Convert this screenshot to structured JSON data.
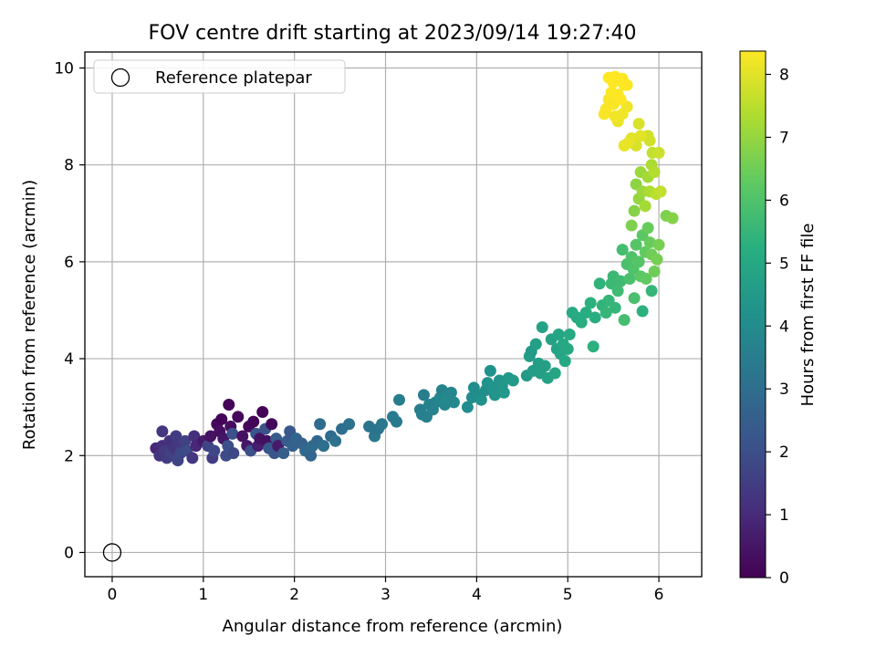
{
  "chart_data": {
    "type": "scatter",
    "title": "FOV centre drift starting at 2023/09/14 19:27:40",
    "xlabel": "Angular distance from reference (arcmin)",
    "ylabel": "Rotation from reference (arcmin)",
    "xlim": [
      -0.3,
      6.47
    ],
    "ylim": [
      -0.5,
      10.33
    ],
    "xticks": [
      0,
      1,
      2,
      3,
      4,
      5,
      6
    ],
    "yticks": [
      0,
      2,
      4,
      6,
      8,
      10
    ],
    "grid": true,
    "legend": {
      "position": "top-left",
      "entries": [
        "Reference platepar"
      ]
    },
    "reference_point": {
      "x": 0,
      "y": 0,
      "label": "Reference platepar",
      "marker": "open-circle"
    },
    "colorbar": {
      "label": "Hours from first FF file",
      "range": [
        0,
        8.37
      ],
      "ticks": [
        0,
        1,
        2,
        3,
        4,
        5,
        6,
        7,
        8
      ],
      "colormap": "viridis"
    },
    "series": [
      {
        "columns": [
          "x",
          "y",
          "hours"
        ],
        "points": [
          [
            0.48,
            2.15,
            0.9
          ],
          [
            0.52,
            2.0,
            1.2
          ],
          [
            0.55,
            2.2,
            1.1
          ],
          [
            0.55,
            2.5,
            1.3
          ],
          [
            0.58,
            2.1,
            1.4
          ],
          [
            0.6,
            1.95,
            1.5
          ],
          [
            0.63,
            2.3,
            1.2
          ],
          [
            0.65,
            2.05,
            1.6
          ],
          [
            0.68,
            2.15,
            1.3
          ],
          [
            0.7,
            2.4,
            1.5
          ],
          [
            0.72,
            1.9,
            1.7
          ],
          [
            0.75,
            2.25,
            1.4
          ],
          [
            0.75,
            2.05,
            1.8
          ],
          [
            0.8,
            2.3,
            1.6
          ],
          [
            0.82,
            2.1,
            1.9
          ],
          [
            0.88,
            1.95,
            1.3
          ],
          [
            0.9,
            2.4,
            1.1
          ],
          [
            0.92,
            2.2,
            0.9
          ],
          [
            1.0,
            2.3,
            0.6
          ],
          [
            1.05,
            2.2,
            1.7
          ],
          [
            1.08,
            2.4,
            0.4
          ],
          [
            1.1,
            1.95,
            1.5
          ],
          [
            1.12,
            2.1,
            1.8
          ],
          [
            1.15,
            2.65,
            0.2
          ],
          [
            1.18,
            2.5,
            0.3
          ],
          [
            1.2,
            2.75,
            0.1
          ],
          [
            1.22,
            2.35,
            0.5
          ],
          [
            1.25,
            2.0,
            1.9
          ],
          [
            1.27,
            2.2,
            2.0
          ],
          [
            1.28,
            3.05,
            0.05
          ],
          [
            1.3,
            2.6,
            0.3
          ],
          [
            1.32,
            2.45,
            2.1
          ],
          [
            1.33,
            2.05,
            1.8
          ],
          [
            1.38,
            2.8,
            0.2
          ],
          [
            1.43,
            2.4,
            0.4
          ],
          [
            1.48,
            2.2,
            0.5
          ],
          [
            1.5,
            2.6,
            0.2
          ],
          [
            1.52,
            2.1,
            2.0
          ],
          [
            1.55,
            2.7,
            0.1
          ],
          [
            1.58,
            2.45,
            2.2
          ],
          [
            1.6,
            2.2,
            0.7
          ],
          [
            1.62,
            2.35,
            0.4
          ],
          [
            1.65,
            2.9,
            0.05
          ],
          [
            1.68,
            2.55,
            2.1
          ],
          [
            1.7,
            2.3,
            0.3
          ],
          [
            1.72,
            2.15,
            2.3
          ],
          [
            1.75,
            2.65,
            0.15
          ],
          [
            1.78,
            2.05,
            2.2
          ],
          [
            1.8,
            2.35,
            2.4
          ],
          [
            1.82,
            2.2,
            0.6
          ],
          [
            1.88,
            2.05,
            2.5
          ],
          [
            1.92,
            2.3,
            2.4
          ],
          [
            1.95,
            2.5,
            2.3
          ],
          [
            1.98,
            2.2,
            2.6
          ],
          [
            2.02,
            2.35,
            2.7
          ],
          [
            2.08,
            2.25,
            2.6
          ],
          [
            2.12,
            2.1,
            2.8
          ],
          [
            2.18,
            2.0,
            2.7
          ],
          [
            2.2,
            2.2,
            2.9
          ],
          [
            2.25,
            2.3,
            2.8
          ],
          [
            2.28,
            2.65,
            2.9
          ],
          [
            2.32,
            2.2,
            3.0
          ],
          [
            2.4,
            2.4,
            2.9
          ],
          [
            2.45,
            2.3,
            3.1
          ],
          [
            2.52,
            2.55,
            3.0
          ],
          [
            2.6,
            2.65,
            3.1
          ],
          [
            2.82,
            2.6,
            3.2
          ],
          [
            2.88,
            2.4,
            3.3
          ],
          [
            2.92,
            2.55,
            3.2
          ],
          [
            2.96,
            2.65,
            3.3
          ],
          [
            3.08,
            2.8,
            3.4
          ],
          [
            3.12,
            2.7,
            3.4
          ],
          [
            3.15,
            3.15,
            3.5
          ],
          [
            3.38,
            2.95,
            3.5
          ],
          [
            3.4,
            2.85,
            3.6
          ],
          [
            3.42,
            3.25,
            3.5
          ],
          [
            3.45,
            2.8,
            3.6
          ],
          [
            3.48,
            3.05,
            3.7
          ],
          [
            3.52,
            2.95,
            3.6
          ],
          [
            3.55,
            3.1,
            3.7
          ],
          [
            3.6,
            3.2,
            3.8
          ],
          [
            3.62,
            3.35,
            3.7
          ],
          [
            3.65,
            3.05,
            3.8
          ],
          [
            3.68,
            3.2,
            3.9
          ],
          [
            3.72,
            3.3,
            3.8
          ],
          [
            3.75,
            3.1,
            3.9
          ],
          [
            3.9,
            3.0,
            4.0
          ],
          [
            3.95,
            3.2,
            4.0
          ],
          [
            3.97,
            3.4,
            4.1
          ],
          [
            4.02,
            3.25,
            4.1
          ],
          [
            4.05,
            3.15,
            4.2
          ],
          [
            4.1,
            3.35,
            4.1
          ],
          [
            4.12,
            3.5,
            4.2
          ],
          [
            4.15,
            3.75,
            4.2
          ],
          [
            4.18,
            3.4,
            4.3
          ],
          [
            4.2,
            3.25,
            4.3
          ],
          [
            4.25,
            3.55,
            4.3
          ],
          [
            4.28,
            3.45,
            4.4
          ],
          [
            4.3,
            3.3,
            4.4
          ],
          [
            4.35,
            3.6,
            4.4
          ],
          [
            4.4,
            3.55,
            4.5
          ],
          [
            4.55,
            3.65,
            4.5
          ],
          [
            4.58,
            4.05,
            4.6
          ],
          [
            4.6,
            4.15,
            4.5
          ],
          [
            4.62,
            3.75,
            4.6
          ],
          [
            4.65,
            4.3,
            4.7
          ],
          [
            4.68,
            3.9,
            4.6
          ],
          [
            4.7,
            3.7,
            4.7
          ],
          [
            4.72,
            4.65,
            4.8
          ],
          [
            4.75,
            3.85,
            4.7
          ],
          [
            4.78,
            3.6,
            4.8
          ],
          [
            4.82,
            4.4,
            4.8
          ],
          [
            4.86,
            3.7,
            4.9
          ],
          [
            4.88,
            4.2,
            4.8
          ],
          [
            4.9,
            4.5,
            4.9
          ],
          [
            4.92,
            4.1,
            4.9
          ],
          [
            4.95,
            4.3,
            5.0
          ],
          [
            4.97,
            3.95,
            5.0
          ],
          [
            5.0,
            4.2,
            5.0
          ],
          [
            5.02,
            4.5,
            5.1
          ],
          [
            5.05,
            4.95,
            5.1
          ],
          [
            5.1,
            4.85,
            5.1
          ],
          [
            5.15,
            4.75,
            5.2
          ],
          [
            5.2,
            4.95,
            5.2
          ],
          [
            5.25,
            5.15,
            5.3
          ],
          [
            5.28,
            4.25,
            5.3
          ],
          [
            5.3,
            4.85,
            5.2
          ],
          [
            5.35,
            5.55,
            5.4
          ],
          [
            5.38,
            5.1,
            5.4
          ],
          [
            5.42,
            4.95,
            5.5
          ],
          [
            5.45,
            5.2,
            5.5
          ],
          [
            5.48,
            5.55,
            5.6
          ],
          [
            5.5,
            5.7,
            5.6
          ],
          [
            5.52,
            5.05,
            5.5
          ],
          [
            5.55,
            5.4,
            5.7
          ],
          [
            5.58,
            5.6,
            5.7
          ],
          [
            5.6,
            6.25,
            5.8
          ],
          [
            5.62,
            4.8,
            5.8
          ],
          [
            5.65,
            5.95,
            5.9
          ],
          [
            5.68,
            5.65,
            5.9
          ],
          [
            5.7,
            6.1,
            6.0
          ],
          [
            5.72,
            5.85,
            6.0
          ],
          [
            5.73,
            5.25,
            5.9
          ],
          [
            5.75,
            6.35,
            6.1
          ],
          [
            5.78,
            6.0,
            6.1
          ],
          [
            5.8,
            5.7,
            6.2
          ],
          [
            5.82,
            6.55,
            6.2
          ],
          [
            5.85,
            6.2,
            6.3
          ],
          [
            5.86,
            5.65,
            6.3
          ],
          [
            5.88,
            6.7,
            6.4
          ],
          [
            5.9,
            6.4,
            6.4
          ],
          [
            5.92,
            6.15,
            6.5
          ],
          [
            5.95,
            5.8,
            6.5
          ],
          [
            5.98,
            6.05,
            6.6
          ],
          [
            6.0,
            6.35,
            6.6
          ],
          [
            5.82,
            4.98,
            5.3
          ],
          [
            5.92,
            5.4,
            5.5
          ],
          [
            5.7,
            6.75,
            6.7
          ],
          [
            5.73,
            7.05,
            6.8
          ],
          [
            5.75,
            7.6,
            6.9
          ],
          [
            5.78,
            7.3,
            7.0
          ],
          [
            5.8,
            7.85,
            7.1
          ],
          [
            5.82,
            7.45,
            7.1
          ],
          [
            5.85,
            7.15,
            7.2
          ],
          [
            5.88,
            7.75,
            7.2
          ],
          [
            5.9,
            7.45,
            7.3
          ],
          [
            5.92,
            8.0,
            7.3
          ],
          [
            5.93,
            8.25,
            7.6
          ],
          [
            5.95,
            7.85,
            7.4
          ],
          [
            5.97,
            7.4,
            7.5
          ],
          [
            6.02,
            7.45,
            7.6
          ],
          [
            6.08,
            6.95,
            6.7
          ],
          [
            6.15,
            6.9,
            6.8
          ],
          [
            6.0,
            8.25,
            7.7
          ],
          [
            5.88,
            8.6,
            7.8
          ],
          [
            5.9,
            8.5,
            7.8
          ],
          [
            5.78,
            8.85,
            7.9
          ],
          [
            5.8,
            8.6,
            8.0
          ],
          [
            5.75,
            8.4,
            7.9
          ],
          [
            5.7,
            8.55,
            8.0
          ],
          [
            5.66,
            8.45,
            8.1
          ],
          [
            5.62,
            8.4,
            8.1
          ],
          [
            5.55,
            8.9,
            8.1
          ],
          [
            5.6,
            9.05,
            8.2
          ],
          [
            5.65,
            9.2,
            8.2
          ],
          [
            5.52,
            9.0,
            8.2
          ],
          [
            5.5,
            9.25,
            8.3
          ],
          [
            5.45,
            9.35,
            8.3
          ],
          [
            5.42,
            9.15,
            8.3
          ],
          [
            5.4,
            9.05,
            8.3
          ],
          [
            5.48,
            9.5,
            8.35
          ],
          [
            5.5,
            9.7,
            8.36
          ],
          [
            5.55,
            9.45,
            8.36
          ],
          [
            5.58,
            9.35,
            8.37
          ],
          [
            5.62,
            9.65,
            8.37
          ],
          [
            5.45,
            9.8,
            8.37
          ],
          [
            5.52,
            9.82,
            8.37
          ],
          [
            5.6,
            9.78,
            8.37
          ],
          [
            5.65,
            9.65,
            8.37
          ]
        ]
      }
    ]
  }
}
